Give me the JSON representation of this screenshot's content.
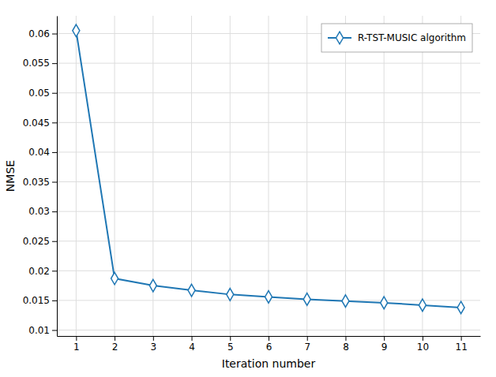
{
  "chart_data": {
    "type": "line",
    "xlabel": "Iteration number",
    "ylabel": "NMSE",
    "x": [
      1,
      2,
      3,
      4,
      5,
      6,
      7,
      8,
      9,
      10,
      11
    ],
    "series": [
      {
        "name": "R-TST-MUSIC algorithm",
        "color": "#1f77b4",
        "marker": "diamond",
        "values": [
          0.0605,
          0.0187,
          0.0175,
          0.0167,
          0.016,
          0.0156,
          0.0152,
          0.0149,
          0.0146,
          0.0142,
          0.0138
        ]
      }
    ],
    "xlim": [
      0.5,
      11.5
    ],
    "ylim": [
      0.009,
      0.063
    ],
    "xticks": [
      1,
      2,
      3,
      4,
      5,
      6,
      7,
      8,
      9,
      10,
      11
    ],
    "yticks": [
      0.01,
      0.015,
      0.02,
      0.025,
      0.03,
      0.035,
      0.04,
      0.045,
      0.05,
      0.055,
      0.06
    ],
    "grid": true,
    "legend": "upper right"
  }
}
